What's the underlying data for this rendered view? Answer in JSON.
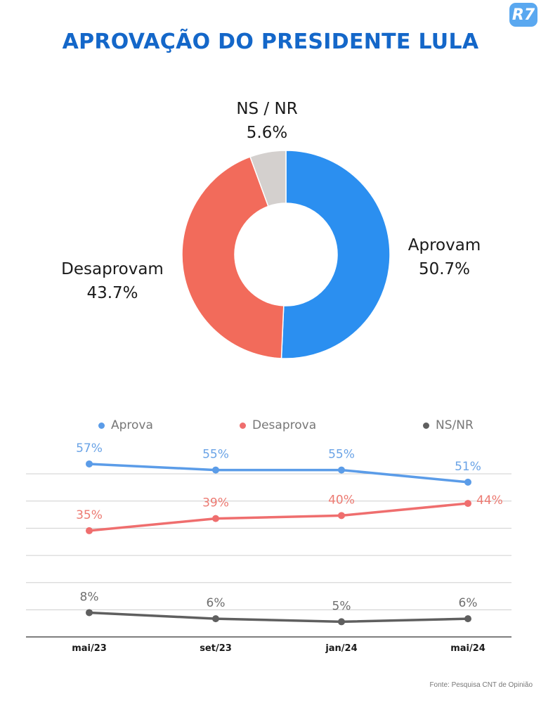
{
  "brand": {
    "logo_text": "R7"
  },
  "title": "APROVAÇÃO DO PRESIDENTE LULA",
  "source": "Fonte: Pesquisa CNT de Opinião",
  "colors": {
    "aprova": "#2b8ff0",
    "desaprova": "#f26b5b",
    "nsnr": "#d4d0ce",
    "line_aprova": "#5b9ce8",
    "line_desaprova": "#ef6e6e",
    "line_nsnr": "#5f5f5f",
    "title": "#1467c9"
  },
  "chart_data": [
    {
      "type": "pie",
      "style": "donut",
      "slices": [
        {
          "name": "Aprovam",
          "value": 50.7,
          "value_label": "50.7%"
        },
        {
          "name": "Desaprovam",
          "value": 43.7,
          "value_label": "43.7%"
        },
        {
          "name": "NS / NR",
          "value": 5.6,
          "value_label": "5.6%"
        }
      ]
    },
    {
      "type": "line",
      "categories": [
        "mai/23",
        "set/23",
        "jan/24",
        "mai/24"
      ],
      "legend_position": "top",
      "grid": true,
      "ylim": [
        0,
        60
      ],
      "series": [
        {
          "name": "Aprova",
          "values": [
            57,
            55,
            55,
            51
          ],
          "labels": [
            "57%",
            "55%",
            "55%",
            "51%"
          ]
        },
        {
          "name": "Desaprova",
          "values": [
            35,
            39,
            40,
            44
          ],
          "labels": [
            "35%",
            "39%",
            "40%",
            "44%"
          ]
        },
        {
          "name": "NS/NR",
          "values": [
            8,
            6,
            5,
            6
          ],
          "labels": [
            "8%",
            "6%",
            "5%",
            "6%"
          ]
        }
      ]
    }
  ]
}
